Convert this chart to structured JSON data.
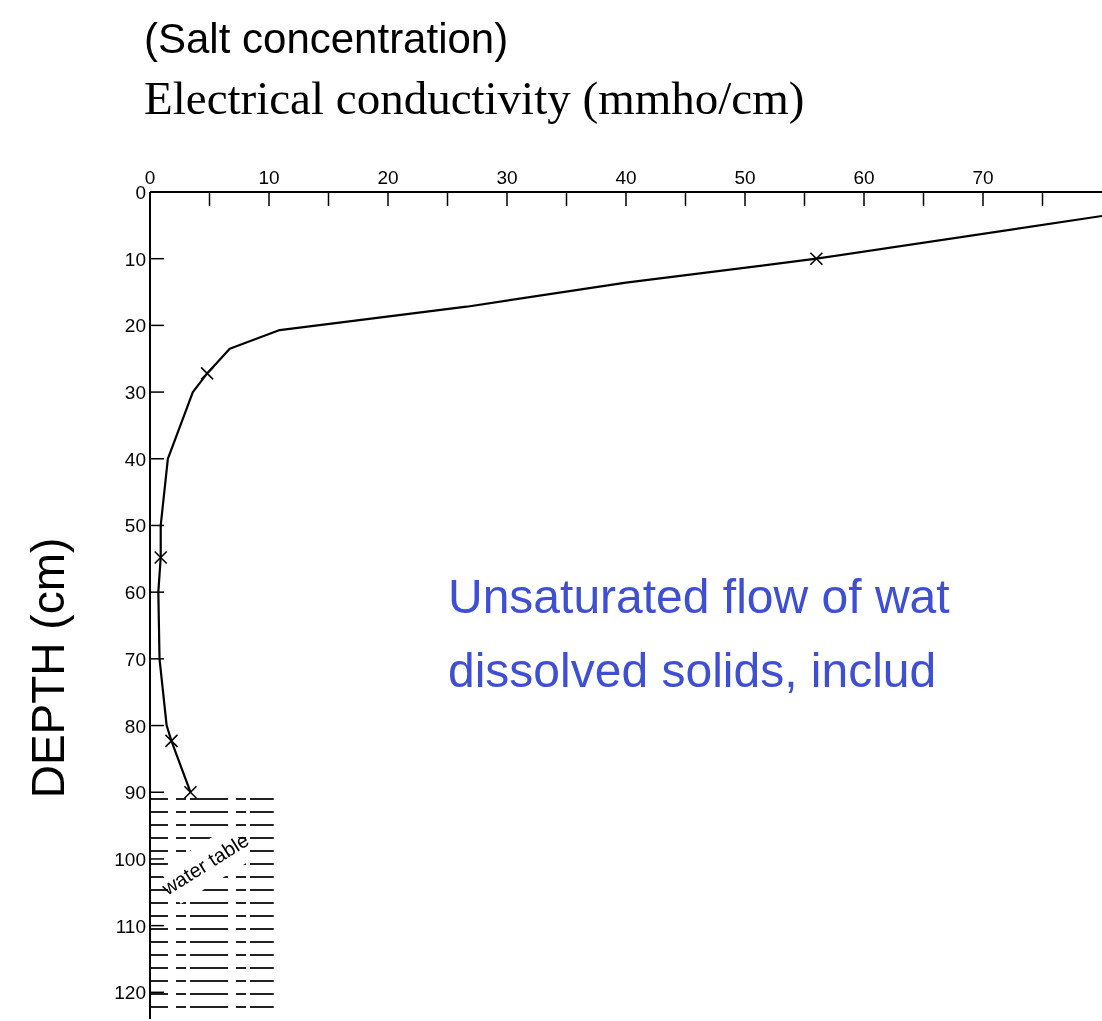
{
  "chart_data": {
    "type": "line",
    "title": "(Salt concentration)",
    "xlabel": "Electrical conductivity (mmho/cm)",
    "ylabel": "DEPTH (cm)",
    "annotations": [
      "Unsaturated flow of wat",
      "dissolved solids, includ"
    ],
    "xlim": [
      0,
      80
    ],
    "xticks": [
      0,
      {
        "value": 5,
        "label": null
      },
      10,
      {
        "value": 15,
        "label": null
      },
      20,
      {
        "value": 25,
        "label": null
      },
      30,
      {
        "value": 35,
        "label": null
      },
      40,
      {
        "value": 45,
        "label": null
      },
      50,
      {
        "value": 55,
        "label": null
      },
      60,
      {
        "value": 65,
        "label": null
      },
      70,
      {
        "value": 75,
        "label": null
      }
    ],
    "ylim": [
      124,
      0
    ],
    "yticks": [
      0,
      10,
      20,
      30,
      40,
      50,
      60,
      70,
      80,
      90,
      100,
      110,
      120
    ],
    "series": [
      {
        "color": "#000000",
        "marker": "none",
        "x": [
          80,
          56,
          40,
          26.6,
          10.9,
          6.7,
          4.8,
          3.6,
          1.5,
          0.9,
          0.9,
          0.7,
          0.8,
          1.4,
          1.8,
          3.4
        ],
        "values": [
          3.6,
          10,
          13.6,
          17.2,
          20.7,
          23.5,
          27.2,
          30,
          40,
          50,
          54.8,
          60,
          70,
          80,
          82.3,
          90
        ]
      },
      {
        "type": "scatter",
        "color": "#000000",
        "marker": "cross",
        "x": [
          56,
          4.8,
          0.9,
          1.8,
          3.4
        ],
        "values": [
          10,
          27.2,
          54.8,
          82.3,
          90
        ]
      }
    ],
    "bands": [
      {
        "axis": "y",
        "from": 90,
        "to": 124,
        "label": "water table",
        "color": "#222222"
      }
    ],
    "grid": false,
    "legend": false
  }
}
